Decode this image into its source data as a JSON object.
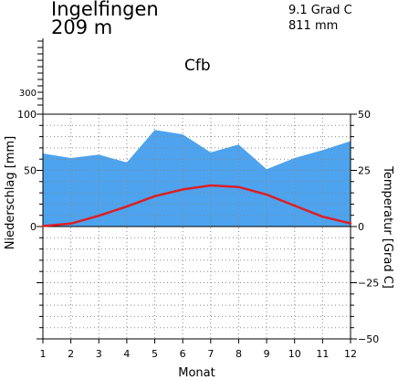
{
  "header": {
    "station": "Ingelfingen",
    "elevation": "209 m",
    "annual_temperature": "9.1 Grad C",
    "annual_precipitation": "811 mm",
    "climate_class": "Cfb"
  },
  "colors": {
    "precip_fill": "#4da3ee",
    "temperature_line": "#dd1e24",
    "grid": "#888888",
    "axis": "#000000"
  },
  "chart_data": {
    "type": "area",
    "x": [
      1,
      2,
      3,
      4,
      5,
      6,
      7,
      8,
      9,
      10,
      11,
      12
    ],
    "xlabel": "Monat",
    "ylabel_left": "Niederschlag [mm]",
    "ylabel_right": "Temperatur [Grad C]",
    "left_axis": {
      "range": [
        -100,
        100
      ],
      "ticks": [
        0,
        50,
        100
      ],
      "upper_tick": 300
    },
    "right_axis": {
      "range": [
        -50,
        50
      ],
      "ticks": [
        -50,
        -25,
        0,
        25,
        50
      ]
    },
    "grid": true,
    "series": [
      {
        "kind": "precipitation",
        "axis": "left",
        "type": "area",
        "values": [
          65,
          61,
          64,
          57,
          86,
          82,
          66,
          73,
          51,
          61,
          68,
          76
        ]
      },
      {
        "kind": "temperature",
        "axis": "right",
        "type": "line",
        "values": [
          0.2,
          1.3,
          4.8,
          8.9,
          13.5,
          16.5,
          18.3,
          17.6,
          14.2,
          9.3,
          4.4,
          1.4
        ]
      }
    ]
  }
}
